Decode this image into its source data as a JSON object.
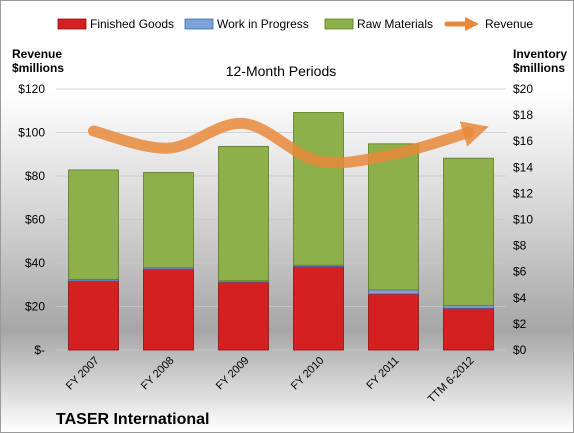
{
  "chart_data": {
    "type": "bar",
    "subtitle": "12-Month Periods",
    "company": "TASER International",
    "categories": [
      "FY 2007",
      "FY 2008",
      "FY 2009",
      "FY 2010",
      "FY 2011",
      "TTM 6-2012"
    ],
    "left_axis": {
      "title_line1": "Revenue",
      "title_line2": "$millions",
      "ylim": [
        0,
        120
      ],
      "ticks": [
        "$-",
        "$20",
        "$40",
        "$60",
        "$80",
        "$100",
        "$120"
      ]
    },
    "right_axis": {
      "title_line1": "Inventory",
      "title_line2": "$millions",
      "ylim": [
        0,
        20
      ],
      "ticks": [
        "$0",
        "$2",
        "$4",
        "$6",
        "$8",
        "$10",
        "$12",
        "$14",
        "$16",
        "$18",
        "$20"
      ]
    },
    "stacked": true,
    "legend_position": "top",
    "series": [
      {
        "name": "Finished Goods",
        "axis": "right",
        "type": "bar",
        "color": "#d42020",
        "values": [
          5.3,
          6.2,
          5.2,
          6.4,
          4.3,
          3.2
        ]
      },
      {
        "name": "Work in Progress",
        "axis": "right",
        "type": "bar",
        "color": "#7da3d8",
        "values": [
          0.1,
          0.1,
          0.1,
          0.1,
          0.3,
          0.2
        ]
      },
      {
        "name": "Raw Materials",
        "axis": "right",
        "type": "bar",
        "color": "#8db04a",
        "values": [
          8.4,
          7.3,
          10.3,
          11.7,
          11.2,
          11.3
        ]
      },
      {
        "name": "Revenue",
        "axis": "left",
        "type": "line",
        "color": "#e9883a",
        "values": [
          100.7,
          92.8,
          104.2,
          86.9,
          90.0,
          100.0
        ]
      }
    ]
  }
}
